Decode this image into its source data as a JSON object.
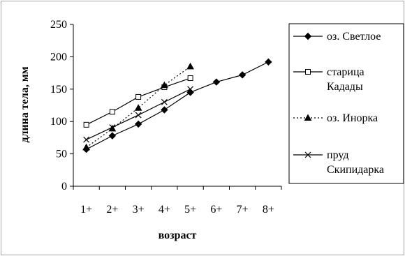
{
  "chart_data": {
    "type": "line",
    "xlabel": "возраст",
    "ylabel": "длина тела, мм",
    "categories": [
      "1+",
      "2+",
      "3+",
      "4+",
      "5+",
      "6+",
      "7+",
      "8+"
    ],
    "ylim": [
      0,
      250
    ],
    "yticks": [
      0,
      50,
      100,
      150,
      200,
      250
    ],
    "grid": false,
    "legend_position": "right",
    "series": [
      {
        "name": "оз. Светлое",
        "marker": "diamond",
        "line": "solid",
        "values": [
          57,
          78,
          96,
          118,
          145,
          161,
          172,
          192
        ]
      },
      {
        "name": "старица Кадады",
        "marker": "square-open",
        "line": "solid",
        "values": [
          95,
          115,
          138,
          153,
          167,
          null,
          null,
          null
        ]
      },
      {
        "name": "оз. Инорка",
        "marker": "triangle",
        "line": "dotted",
        "values": [
          60,
          89,
          121,
          156,
          185,
          null,
          null,
          null
        ]
      },
      {
        "name": "пруд Скипидарка",
        "marker": "x",
        "line": "solid",
        "values": [
          72,
          91,
          110,
          130,
          150,
          null,
          null,
          null
        ]
      }
    ]
  }
}
